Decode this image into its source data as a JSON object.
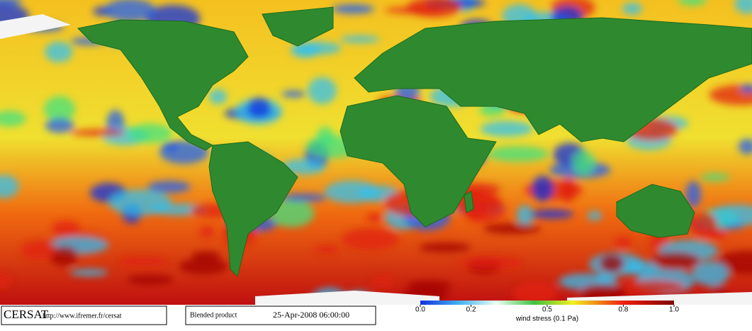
{
  "footer": {
    "logo": "CERSAT",
    "url": "http://www.ifremer.fr/cersat",
    "product": "Blended product",
    "timestamp": "25-Apr-2008 06:00:00"
  },
  "colorbar": {
    "label": "wind stress (0.1 Pa)",
    "lim": [
      0,
      1
    ],
    "ticks": [
      {
        "value": 0,
        "label": "0.0"
      },
      0.2,
      0.5,
      0.8,
      {
        "value": 1,
        "label": "1.0"
      }
    ]
  }
}
